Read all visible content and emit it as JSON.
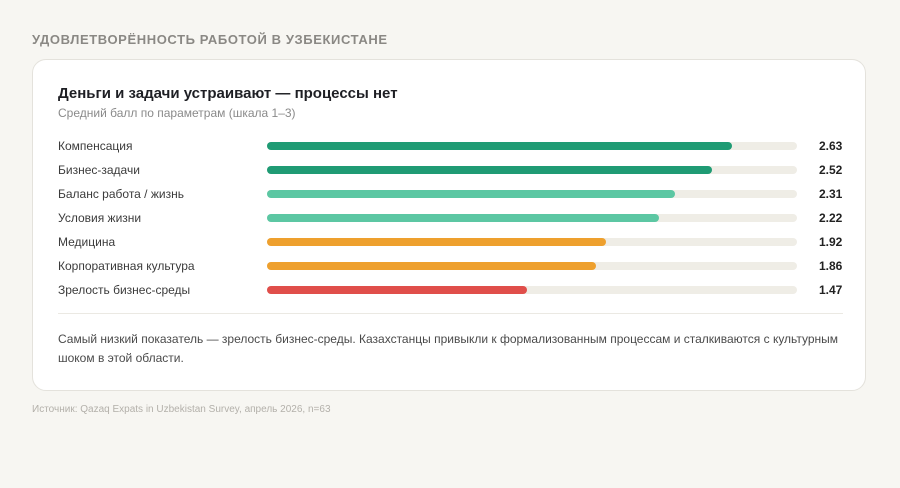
{
  "section_title": "УДОВЛЕТВОРЁННОСТЬ РАБОТОЙ В УЗБЕКИСТАНЕ",
  "card": {
    "title": "Деньги и задачи устраивают — процессы нет",
    "subtitle": "Средний балл по параметрам (шкала 1–3)",
    "note": "Самый низкий показатель — зрелость бизнес-среды. Казахстанцы привыкли к формализованным процессам и сталкиваются с культурным шоком в этой области."
  },
  "source": "Источник: Qazaq Expats in Uzbekistan Survey, апрель 2026, n=63",
  "colors": {
    "dark_green": "#1f9b74",
    "light_green": "#5cc7a3",
    "orange": "#eea02e",
    "red": "#e04e4a",
    "track": "#efede6"
  },
  "chart_data": {
    "type": "bar",
    "orientation": "horizontal",
    "title": "Деньги и задачи устраивают — процессы нет",
    "subtitle": "Средний балл по параметрам (шкала 1–3)",
    "xlim": [
      0,
      3
    ],
    "grid": false,
    "legend": "none",
    "categories": [
      "Компенсация",
      "Бизнес-задачи",
      "Баланс работа / жизнь",
      "Условия жизни",
      "Медицина",
      "Корпоративная культура",
      "Зрелость бизнес-среды"
    ],
    "values": [
      2.63,
      2.52,
      2.31,
      2.22,
      1.92,
      1.86,
      1.47
    ],
    "value_labels": [
      "2.63",
      "2.52",
      "2.31",
      "2.22",
      "1.92",
      "1.86",
      "1.47"
    ],
    "bar_colors": [
      "#1f9b74",
      "#1f9b74",
      "#5cc7a3",
      "#5cc7a3",
      "#eea02e",
      "#eea02e",
      "#e04e4a"
    ]
  }
}
